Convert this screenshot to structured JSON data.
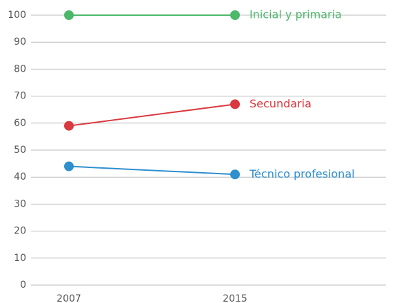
{
  "chart_data": {
    "type": "line",
    "categories": [
      "2007",
      "2015"
    ],
    "series": [
      {
        "name": "Inicial y primaria",
        "color": "#4cb86a",
        "values": [
          100,
          100
        ]
      },
      {
        "name": "Secundaria",
        "color": "#d9393f",
        "values": [
          59,
          67
        ]
      },
      {
        "name": "Técnico profesional",
        "color": "#2e8fcf",
        "values": [
          44,
          41
        ]
      }
    ],
    "ylim": [
      0,
      100
    ],
    "yticks": [
      0,
      10,
      20,
      30,
      40,
      50,
      60,
      70,
      80,
      90,
      100
    ],
    "grid": true
  }
}
